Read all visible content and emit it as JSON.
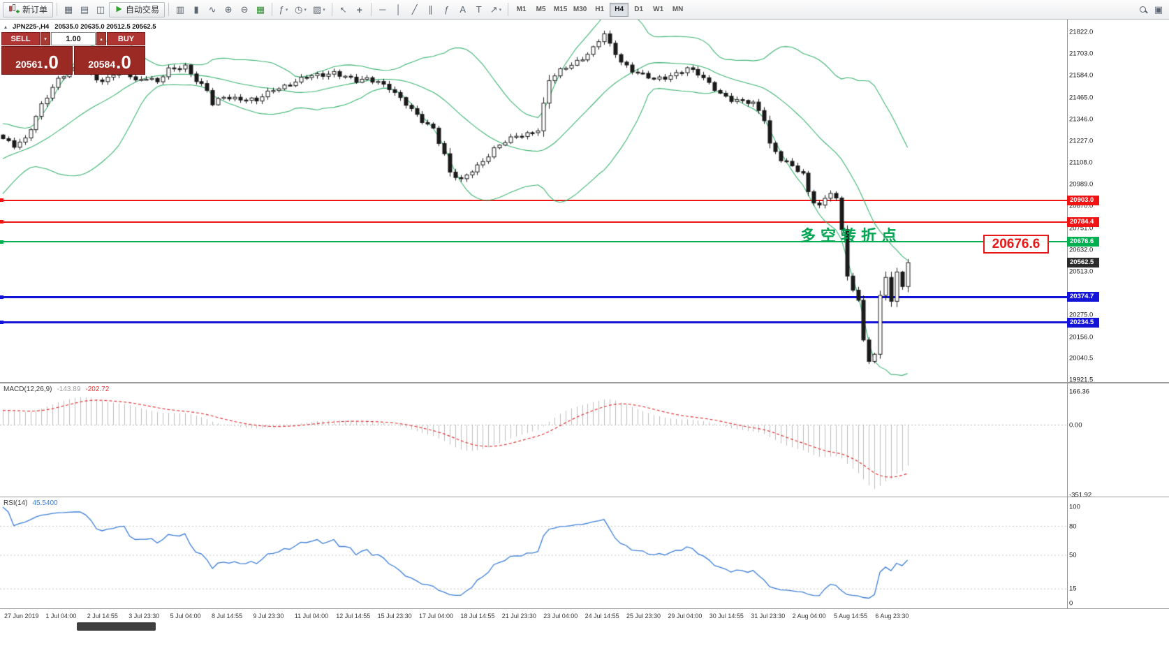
{
  "toolbar": {
    "new_order_label": "新订单",
    "auto_trading_label": "自动交易",
    "timeframes": [
      "M1",
      "M5",
      "M15",
      "M30",
      "H1",
      "H4",
      "D1",
      "W1",
      "MN"
    ],
    "active_timeframe": "H4",
    "icon_names_left": [
      "new-chart",
      "market-watch",
      "data-window"
    ],
    "icon_names_chart_types": [
      "bar-chart",
      "candlestick-chart",
      "line-chart"
    ],
    "icon_names_zoom": [
      "zoom-in",
      "zoom-out",
      "grid"
    ],
    "icon_names_insert": [
      "indicators",
      "periods",
      "templates"
    ],
    "icon_names_pointer": [
      "cursor",
      "crosshair"
    ],
    "icon_names_draw": [
      "horizontal-line",
      "vertical-line",
      "trendline",
      "channel",
      "fibonacci",
      "text",
      "label",
      "arrows"
    ],
    "icon_names_right": [
      "search",
      "new-window"
    ]
  },
  "icon_glyphs": {
    "new-chart": "▦",
    "market-watch": "▤",
    "data-window": "◫",
    "bar-chart": "▥",
    "candlestick-chart": "▮",
    "line-chart": "∿",
    "zoom-in": "⊕",
    "zoom-out": "⊖",
    "grid": "▦",
    "indicators": "ƒ",
    "periods": "◷",
    "templates": "▨",
    "cursor": "↖",
    "crosshair": "+",
    "horizontal-line": "─",
    "vertical-line": "│",
    "trendline": "╱",
    "channel": "∥",
    "fibonacci": "ƒ",
    "text": "A",
    "label": "T",
    "arrows": "↗",
    "search": "⌕",
    "new-window": "▣"
  },
  "symbol_header": {
    "symbol_tf": "JPN225-,H4",
    "ohlc_text": "20535.0 20635.0 20512.5 20562.5"
  },
  "trade_panel": {
    "sell_label": "SELL",
    "buy_label": "BUY",
    "volume": "1.00",
    "sell_price_main": "20561",
    "sell_price_frac": ".0",
    "buy_price_main": "20584",
    "buy_price_frac": ".0"
  },
  "annotation": {
    "text": "多空转折点",
    "callout": "20676.6"
  },
  "price_axis": {
    "ticks": [
      {
        "p": 21822.0,
        "label": "21822.0"
      },
      {
        "p": 21703.0,
        "label": "21703.0"
      },
      {
        "p": 21584.0,
        "label": "21584.0"
      },
      {
        "p": 21465.0,
        "label": "21465.0"
      },
      {
        "p": 21346.0,
        "label": "21346.0"
      },
      {
        "p": 21227.0,
        "label": "21227.0"
      },
      {
        "p": 21108.0,
        "label": "21108.0"
      },
      {
        "p": 20989.0,
        "label": "20989.0"
      },
      {
        "p": 20870.0,
        "label": "20870.0"
      },
      {
        "p": 20751.0,
        "label": "20751.0"
      },
      {
        "p": 20632.0,
        "label": "20632.0"
      },
      {
        "p": 20513.0,
        "label": "20513.0"
      },
      {
        "p": 20275.0,
        "label": "20275.0"
      },
      {
        "p": 20156.0,
        "label": "20156.0"
      },
      {
        "p": 20040.5,
        "label": "20040.5"
      },
      {
        "p": 19921.5,
        "label": "19921.5"
      }
    ],
    "current": {
      "p": 20562.5,
      "label": "20562.5"
    }
  },
  "macd_panel": {
    "name": "MACD(12,26,9)",
    "value_main": "-143.89",
    "value_signal": "-202.72",
    "axis": [
      {
        "v": 166.36,
        "label": "166.36"
      },
      {
        "v": 0,
        "label": "0.00"
      },
      {
        "v": -351.92,
        "label": "-351.92"
      }
    ]
  },
  "rsi_panel": {
    "name": "RSI(14)",
    "value": "45.5400",
    "axis": [
      {
        "v": 100,
        "label": "100"
      },
      {
        "v": 80,
        "label": "80"
      },
      {
        "v": 50,
        "label": "50"
      },
      {
        "v": 15,
        "label": "15"
      },
      {
        "v": 0,
        "label": "0"
      }
    ]
  },
  "time_axis": {
    "labels": [
      "27 Jun 2019",
      "1 Jul 04:00",
      "2 Jul 14:55",
      "3 Jul 23:30",
      "5 Jul 04:00",
      "8 Jul 14:55",
      "9 Jul 23:30",
      "11 Jul 04:00",
      "12 Jul 14:55",
      "15 Jul 23:30",
      "17 Jul 04:00",
      "18 Jul 14:55",
      "21 Jul 23:30",
      "23 Jul 04:00",
      "24 Jul 14:55",
      "25 Jul 23:30",
      "29 Jul 04:00",
      "30 Jul 14:55",
      "31 Jul 23:30",
      "2 Aug 04:00",
      "5 Aug 14:55",
      "6 Aug 23:30"
    ]
  },
  "colors": {
    "red": "#f01414",
    "green": "#00b050",
    "blue": "#1414d8",
    "current_tag": "#2b2b2b",
    "bull": "#ffffff",
    "bear": "#1a1a1a",
    "candle_outline": "#1a1a1a",
    "bollinger": "#3cb371",
    "macd_histogram": "#bdbdbd",
    "macd_signal": "#e03232",
    "rsi": "#3b7dd8",
    "annotation_green": "#00a651",
    "callout_red": "#e81717"
  },
  "chart_data": {
    "type": "candlestick",
    "symbol": "JPN225-",
    "timeframe": "H4",
    "ohlc_current": {
      "open": 20535.0,
      "high": 20635.0,
      "low": 20512.5,
      "close": 20562.5
    },
    "price_range_visible": [
      19921.5,
      21822.0
    ],
    "candle_count": 165,
    "close_anchors": [
      [
        0,
        21240
      ],
      [
        2,
        21195
      ],
      [
        4,
        21235
      ],
      [
        7,
        21430
      ],
      [
        10,
        21560
      ],
      [
        14,
        21645
      ],
      [
        16,
        21600
      ],
      [
        18,
        21545
      ],
      [
        20,
        21590
      ],
      [
        22,
        21620
      ],
      [
        24,
        21560
      ],
      [
        26,
        21575
      ],
      [
        28,
        21545
      ],
      [
        30,
        21615
      ],
      [
        33,
        21640
      ],
      [
        35,
        21560
      ],
      [
        37,
        21500
      ],
      [
        38,
        21425
      ],
      [
        40,
        21470
      ],
      [
        43,
        21460
      ],
      [
        46,
        21445
      ],
      [
        49,
        21510
      ],
      [
        52,
        21540
      ],
      [
        55,
        21575
      ],
      [
        58,
        21590
      ],
      [
        60,
        21605
      ],
      [
        62,
        21580
      ],
      [
        64,
        21550
      ],
      [
        66,
        21565
      ],
      [
        68,
        21555
      ],
      [
        70,
        21520
      ],
      [
        72,
        21455
      ],
      [
        74,
        21395
      ],
      [
        76,
        21340
      ],
      [
        78,
        21300
      ],
      [
        80,
        21150
      ],
      [
        81,
        21050
      ],
      [
        83,
        21010
      ],
      [
        85,
        21070
      ],
      [
        87,
        21120
      ],
      [
        89,
        21180
      ],
      [
        91,
        21220
      ],
      [
        93,
        21255
      ],
      [
        95,
        21270
      ],
      [
        97,
        21290
      ],
      [
        99,
        21555
      ],
      [
        101,
        21610
      ],
      [
        103,
        21650
      ],
      [
        105,
        21680
      ],
      [
        107,
        21730
      ],
      [
        109,
        21810
      ],
      [
        110,
        21750
      ],
      [
        112,
        21665
      ],
      [
        114,
        21615
      ],
      [
        116,
        21585
      ],
      [
        118,
        21560
      ],
      [
        120,
        21575
      ],
      [
        122,
        21600
      ],
      [
        124,
        21625
      ],
      [
        126,
        21590
      ],
      [
        128,
        21540
      ],
      [
        130,
        21490
      ],
      [
        132,
        21455
      ],
      [
        134,
        21440
      ],
      [
        136,
        21430
      ],
      [
        138,
        21350
      ],
      [
        139,
        21215
      ],
      [
        141,
        21130
      ],
      [
        143,
        21085
      ],
      [
        145,
        21040
      ],
      [
        146,
        20950
      ],
      [
        147,
        20900
      ],
      [
        148,
        20875
      ],
      [
        149,
        20920
      ],
      [
        150,
        20950
      ],
      [
        151,
        20905
      ],
      [
        152,
        20740
      ],
      [
        153,
        20490
      ],
      [
        154,
        20400
      ],
      [
        155,
        20360
      ],
      [
        156,
        20150
      ],
      [
        157,
        20020
      ],
      [
        158,
        20070
      ],
      [
        159,
        20390
      ],
      [
        160,
        20470
      ],
      [
        161,
        20350
      ],
      [
        162,
        20510
      ],
      [
        163,
        20420
      ],
      [
        164,
        20562.5
      ]
    ],
    "pre_history": [
      20900,
      20930,
      20960,
      20990,
      21020,
      21050,
      21070,
      21090,
      21110,
      21130,
      21150,
      21165,
      21180,
      21195,
      21205,
      21215,
      21220,
      21225,
      21230,
      21235
    ],
    "indicators": {
      "bollinger": {
        "period": 20,
        "deviation": 2
      },
      "macd": {
        "fast": 12,
        "slow": 26,
        "signal": 9,
        "current": -143.89,
        "current_signal": -202.72,
        "axis_max": 166.36,
        "axis_min": -351.92
      },
      "rsi": {
        "period": 14,
        "current": 45.54,
        "levels": [
          80,
          50,
          15
        ]
      }
    },
    "hlines": [
      {
        "price": 20903.0,
        "label": "20903.0",
        "color": "red",
        "width": 2
      },
      {
        "price": 20784.4,
        "label": "20784.4",
        "color": "red",
        "width": 2
      },
      {
        "price": 20676.6,
        "label": "20676.6",
        "color": "green",
        "width": 2
      },
      {
        "price": 20374.7,
        "label": "20374.7",
        "color": "blue",
        "width": 3
      },
      {
        "price": 20234.5,
        "label": "20234.5",
        "color": "blue",
        "width": 3
      }
    ]
  }
}
